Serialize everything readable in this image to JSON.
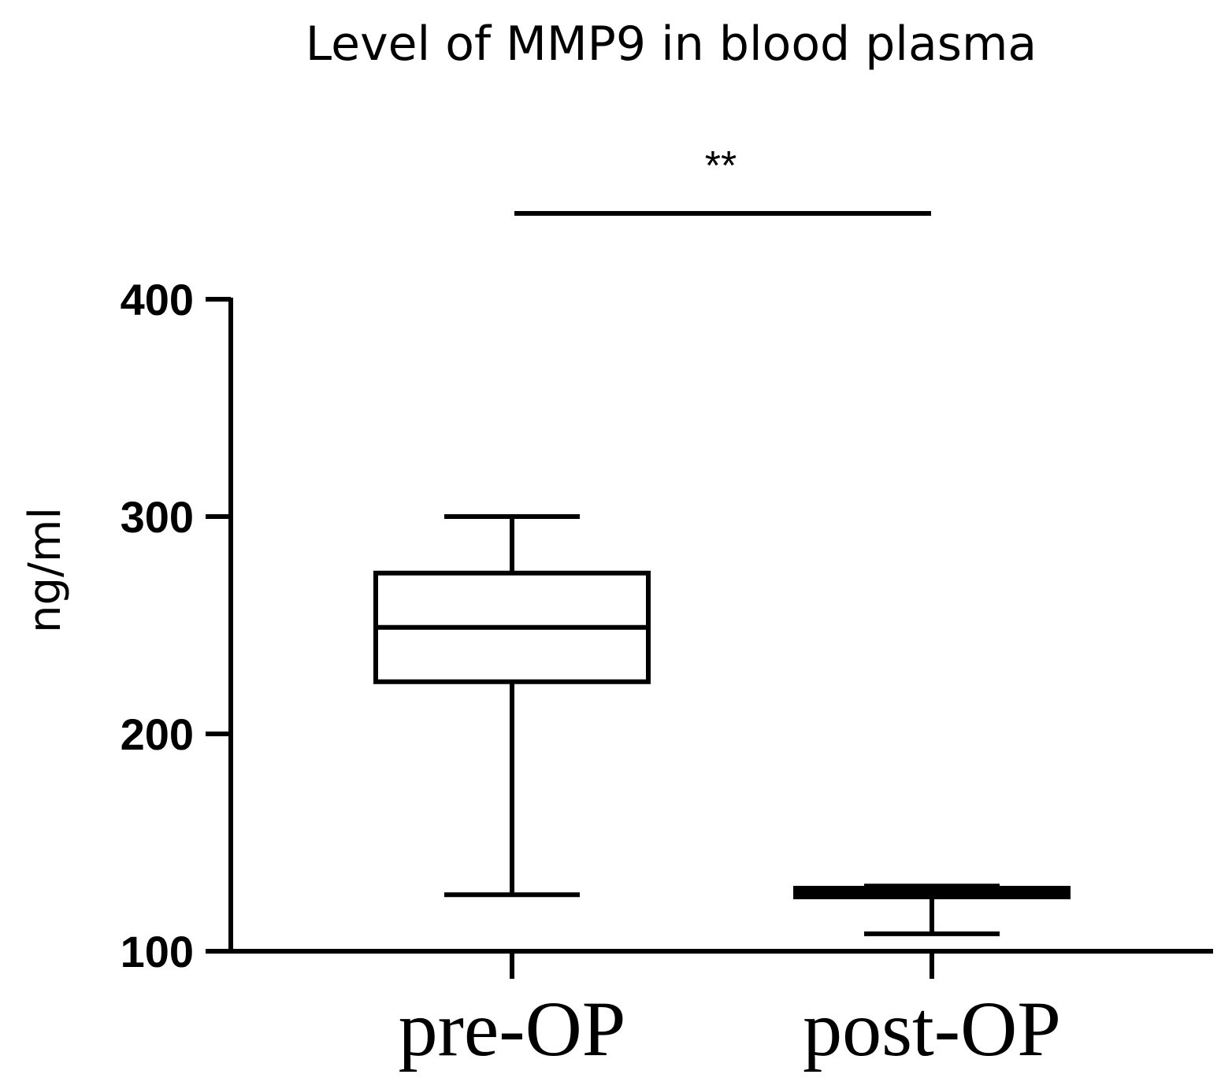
{
  "chart_data": {
    "type": "box",
    "title": "Level of MMP9 in blood plasma",
    "xlabel": "",
    "ylabel": "ng/ml",
    "ylim": [
      100,
      400
    ],
    "yticks": [
      100,
      200,
      300,
      400
    ],
    "ytick_labels": [
      "100",
      "200",
      "300",
      "400"
    ],
    "categories": [
      "pre-OP",
      "post-OP"
    ],
    "boxes": [
      {
        "category": "pre-OP",
        "min": 126,
        "q1": 224,
        "median": 249,
        "q3": 274,
        "max": 300
      },
      {
        "category": "post-OP",
        "min": 108,
        "q1": 125,
        "median": 127,
        "q3": 129,
        "max": 130
      }
    ],
    "significance": {
      "label": "**",
      "between": [
        "pre-OP",
        "post-OP"
      ]
    },
    "grid": false,
    "legend": "none"
  }
}
